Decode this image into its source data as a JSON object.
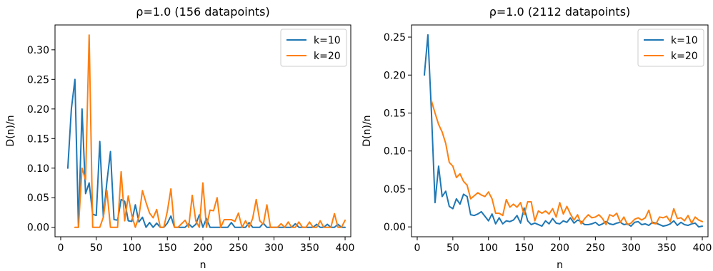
{
  "chart_data": [
    {
      "type": "line",
      "title": "ρ=1.0 (156 datapoints)",
      "xlabel": "n",
      "ylabel": "D(n)/n",
      "xlim": [
        -8,
        408
      ],
      "ylim": [
        -0.016,
        0.342
      ],
      "xticks": [
        0,
        50,
        100,
        150,
        200,
        250,
        300,
        350,
        400
      ],
      "yticks": [
        0.0,
        0.05,
        0.1,
        0.15,
        0.2,
        0.25,
        0.3
      ],
      "ytick_labels": [
        "0.00",
        "0.05",
        "0.10",
        "0.15",
        "0.20",
        "0.25",
        "0.30"
      ],
      "legend_position": "top-right",
      "grid": false,
      "series": [
        {
          "name": "k=10",
          "color": "#1f77b4",
          "x": [
            10,
            15,
            20,
            25,
            30,
            35,
            40,
            45,
            50,
            55,
            60,
            65,
            70,
            75,
            80,
            85,
            90,
            95,
            100,
            105,
            110,
            115,
            120,
            125,
            130,
            135,
            140,
            145,
            150,
            155,
            160,
            165,
            170,
            175,
            180,
            185,
            190,
            195,
            200,
            205,
            210,
            215,
            220,
            225,
            230,
            235,
            240,
            245,
            250,
            255,
            260,
            265,
            270,
            275,
            280,
            285,
            290,
            295,
            300,
            305,
            310,
            315,
            320,
            325,
            330,
            335,
            340,
            345,
            350,
            355,
            360,
            365,
            370,
            375,
            380,
            385,
            390,
            395,
            400
          ],
          "y": [
            0.1,
            0.2,
            0.25,
            0.0,
            0.2,
            0.057,
            0.075,
            0.022,
            0.02,
            0.145,
            0.017,
            0.077,
            0.128,
            0.013,
            0.012,
            0.047,
            0.044,
            0.011,
            0.01,
            0.038,
            0.009,
            0.017,
            0.0,
            0.008,
            0.0,
            0.007,
            0.0,
            0.0,
            0.007,
            0.019,
            0.0,
            0.0,
            0.0,
            0.0,
            0.006,
            0.0,
            0.005,
            0.021,
            0.0,
            0.015,
            0.0,
            0.0,
            0.0,
            0.0,
            0.0,
            0.0,
            0.008,
            0.0,
            0.0,
            0.0,
            0.0,
            0.008,
            0.0,
            0.0,
            0.0,
            0.007,
            0.0,
            0.0,
            0.0,
            0.0,
            0.0,
            0.0,
            0.0,
            0.0,
            0.006,
            0.0,
            0.0,
            0.0,
            0.0,
            0.0,
            0.005,
            0.0,
            0.0,
            0.005,
            0.0,
            0.0,
            0.005,
            0.0,
            0.0
          ]
        },
        {
          "name": "k=20",
          "color": "#ff7f0e",
          "x": [
            20,
            25,
            30,
            35,
            40,
            45,
            50,
            55,
            60,
            65,
            70,
            75,
            80,
            85,
            90,
            95,
            100,
            105,
            110,
            115,
            120,
            125,
            130,
            135,
            140,
            145,
            150,
            155,
            160,
            165,
            170,
            175,
            180,
            185,
            190,
            195,
            200,
            205,
            210,
            215,
            220,
            225,
            230,
            235,
            240,
            245,
            250,
            255,
            260,
            265,
            270,
            275,
            280,
            285,
            290,
            295,
            300,
            305,
            310,
            315,
            320,
            325,
            330,
            335,
            340,
            345,
            350,
            355,
            360,
            365,
            370,
            375,
            380,
            385,
            390,
            395,
            400
          ],
          "y": [
            0.0,
            0.0,
            0.1,
            0.08,
            0.325,
            0.0,
            0.0,
            0.0,
            0.017,
            0.062,
            0.0,
            0.0,
            0.0,
            0.094,
            0.011,
            0.053,
            0.02,
            0.0,
            0.018,
            0.062,
            0.042,
            0.024,
            0.016,
            0.03,
            0.0,
            0.0,
            0.027,
            0.065,
            0.0,
            0.0,
            0.006,
            0.012,
            0.0,
            0.054,
            0.011,
            0.0,
            0.075,
            0.0,
            0.029,
            0.028,
            0.05,
            0.0,
            0.013,
            0.013,
            0.013,
            0.01,
            0.024,
            0.0,
            0.011,
            0.0,
            0.015,
            0.047,
            0.011,
            0.005,
            0.038,
            0.0,
            0.0,
            0.0,
            0.006,
            0.0,
            0.009,
            0.0,
            0.0,
            0.009,
            0.0,
            0.0,
            0.009,
            0.0,
            0.0,
            0.011,
            0.0,
            0.0,
            0.0,
            0.023,
            0.0,
            0.0,
            0.012
          ]
        }
      ]
    },
    {
      "type": "line",
      "title": "ρ=1.0 (2112 datapoints)",
      "xlabel": "n",
      "ylabel": "D(n)/n",
      "xlim": [
        -8,
        408
      ],
      "ylim": [
        -0.013,
        0.266
      ],
      "xticks": [
        0,
        50,
        100,
        150,
        200,
        250,
        300,
        350,
        400
      ],
      "yticks": [
        0.0,
        0.05,
        0.1,
        0.15,
        0.2,
        0.25
      ],
      "ytick_labels": [
        "0.00",
        "0.05",
        "0.10",
        "0.15",
        "0.20",
        "0.25"
      ],
      "legend_position": "top-right",
      "grid": false,
      "series": [
        {
          "name": "k=10",
          "color": "#1f77b4",
          "x": [
            10,
            15,
            20,
            25,
            30,
            35,
            40,
            45,
            50,
            55,
            60,
            65,
            70,
            75,
            80,
            85,
            90,
            95,
            100,
            105,
            110,
            115,
            120,
            125,
            130,
            135,
            140,
            145,
            150,
            155,
            160,
            165,
            170,
            175,
            180,
            185,
            190,
            195,
            200,
            205,
            210,
            215,
            220,
            225,
            230,
            235,
            240,
            245,
            250,
            255,
            260,
            265,
            270,
            275,
            280,
            285,
            290,
            295,
            300,
            305,
            310,
            315,
            320,
            325,
            330,
            335,
            340,
            345,
            350,
            355,
            360,
            365,
            370,
            375,
            380,
            385,
            390,
            395,
            400
          ],
          "y": [
            0.2,
            0.253,
            0.15,
            0.032,
            0.08,
            0.04,
            0.047,
            0.027,
            0.024,
            0.037,
            0.03,
            0.043,
            0.04,
            0.016,
            0.015,
            0.017,
            0.02,
            0.014,
            0.008,
            0.017,
            0.004,
            0.012,
            0.004,
            0.008,
            0.007,
            0.009,
            0.015,
            0.005,
            0.025,
            0.008,
            0.003,
            0.005,
            0.003,
            0.001,
            0.008,
            0.004,
            0.011,
            0.005,
            0.004,
            0.008,
            0.006,
            0.012,
            0.005,
            0.009,
            0.007,
            0.003,
            0.003,
            0.004,
            0.006,
            0.002,
            0.004,
            0.007,
            0.004,
            0.003,
            0.005,
            0.006,
            0.003,
            0.004,
            0.001,
            0.006,
            0.007,
            0.003,
            0.004,
            0.002,
            0.006,
            0.005,
            0.003,
            0.001,
            0.002,
            0.004,
            0.008,
            0.002,
            0.006,
            0.003,
            0.002,
            0.004,
            0.005,
            0.0,
            0.001
          ]
        },
        {
          "name": "k=20",
          "color": "#ff7f0e",
          "x": [
            20,
            25,
            30,
            35,
            40,
            45,
            50,
            55,
            60,
            65,
            70,
            75,
            80,
            85,
            90,
            95,
            100,
            105,
            110,
            115,
            120,
            125,
            130,
            135,
            140,
            145,
            150,
            155,
            160,
            165,
            170,
            175,
            180,
            185,
            190,
            195,
            200,
            205,
            210,
            215,
            220,
            225,
            230,
            235,
            240,
            245,
            250,
            255,
            260,
            265,
            270,
            275,
            280,
            285,
            290,
            295,
            300,
            305,
            310,
            315,
            320,
            325,
            330,
            335,
            340,
            345,
            350,
            355,
            360,
            365,
            370,
            375,
            380,
            385,
            390,
            395,
            400
          ],
          "y": [
            0.166,
            0.15,
            0.135,
            0.125,
            0.11,
            0.085,
            0.08,
            0.065,
            0.07,
            0.06,
            0.055,
            0.037,
            0.041,
            0.045,
            0.042,
            0.04,
            0.046,
            0.037,
            0.018,
            0.018,
            0.015,
            0.036,
            0.026,
            0.03,
            0.026,
            0.032,
            0.016,
            0.033,
            0.033,
            0.008,
            0.021,
            0.018,
            0.021,
            0.017,
            0.024,
            0.013,
            0.032,
            0.017,
            0.027,
            0.017,
            0.009,
            0.016,
            0.004,
            0.011,
            0.016,
            0.012,
            0.013,
            0.016,
            0.011,
            0.003,
            0.016,
            0.014,
            0.018,
            0.006,
            0.013,
            0.003,
            0.005,
            0.01,
            0.012,
            0.009,
            0.012,
            0.022,
            0.005,
            0.004,
            0.013,
            0.012,
            0.014,
            0.007,
            0.024,
            0.011,
            0.012,
            0.008,
            0.015,
            0.005,
            0.013,
            0.009,
            0.007
          ]
        }
      ]
    }
  ]
}
